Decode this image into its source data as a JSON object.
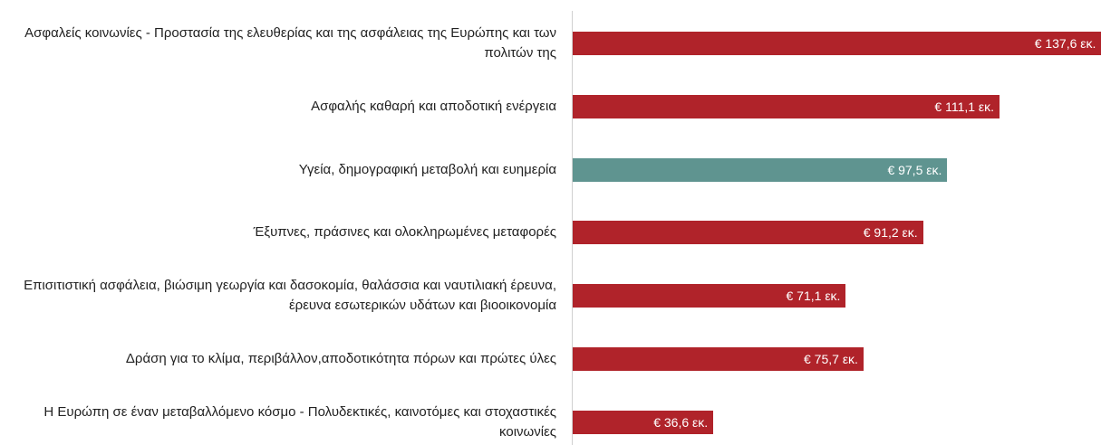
{
  "chart_data": {
    "type": "bar",
    "orientation": "horizontal",
    "categories": [
      "Ασφαλείς κοινωνίες - Προστασία της ελευθερίας και της ασφάλειας της Ευρώπης και των πολιτών της",
      "Ασφαλής καθαρή και αποδοτική ενέργεια",
      "Υγεία, δημογραφική μεταβολή και ευημερία",
      "Έξυπνες, πράσινες και ολοκληρωμένες μεταφορές",
      "Επισιτιστική ασφάλεια, βιώσιμη γεωργία και δασοκομία, θαλάσσια και ναυτιλιακή έρευνα, έρευνα εσωτερικών υδάτων και βιοοικονομία",
      "Δράση για το κλίμα, περιβάλλον,αποδοτικότητα πόρων και πρώτες ύλες",
      "Η Ευρώπη σε έναν μεταβαλλόμενο κόσμο - Πολυδεκτικές, καινοτόμες και στοχαστικές κοινωνίες"
    ],
    "values": [
      137.6,
      111.1,
      97.5,
      91.2,
      71.1,
      75.7,
      36.6
    ],
    "value_labels": [
      "€ 137,6 εκ.",
      "€ 111,1 εκ.",
      "€ 97,5 εκ.",
      "€ 91,2 εκ.",
      "€ 71,1 εκ.",
      "€ 75,7 εκ.",
      "€ 36,6 εκ."
    ],
    "colors": [
      "#b0232a",
      "#b0232a",
      "#5f9490",
      "#b0232a",
      "#b0232a",
      "#b0232a",
      "#b0232a"
    ]
  }
}
